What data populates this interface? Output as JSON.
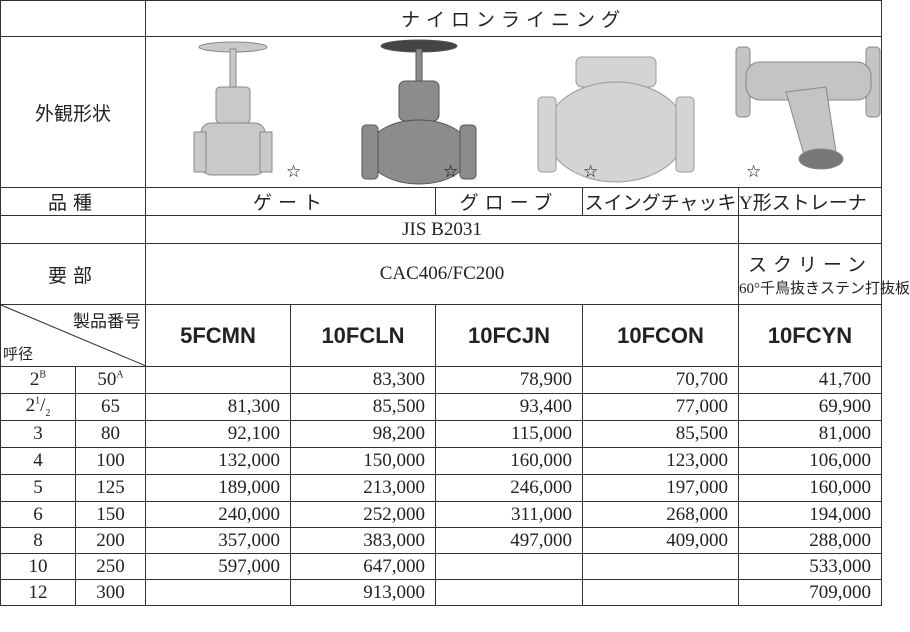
{
  "header": {
    "group": "ナイロンライニング"
  },
  "appearance": {
    "label": "外観形状",
    "marks": [
      "☆",
      "☆",
      "☆",
      "☆"
    ]
  },
  "type_row": {
    "label": "品種",
    "types": [
      "ゲート",
      "グローブ",
      "スイングチャッキ",
      "Y形ストレーナ"
    ]
  },
  "standard": {
    "text": "JIS B2031"
  },
  "material": {
    "label": "要部",
    "body": "CAC406/FC200",
    "screen": [
      "スクリーン",
      "60°千鳥抜きステン打抜板"
    ]
  },
  "table": {
    "corner_top": "製品番号",
    "corner_bottom": "呼径",
    "products": [
      "5FCMN",
      "10FCLN",
      "10FCJN",
      "10FCON",
      "10FCYN"
    ],
    "rows": [
      {
        "inch": "2",
        "inch_sup": "B",
        "mm": "50",
        "mm_sup": "A",
        "prices": [
          null,
          "83,300",
          "78,900",
          "70,700",
          "41,700"
        ]
      },
      {
        "inch": "2",
        "inch_frac": [
          "1",
          "2"
        ],
        "mm": "65",
        "prices": [
          "81,300",
          "85,500",
          "93,400",
          "77,000",
          "69,900"
        ]
      },
      {
        "inch": "3",
        "mm": "80",
        "prices": [
          "92,100",
          "98,200",
          "115,000",
          "85,500",
          "81,000"
        ]
      },
      {
        "inch": "4",
        "mm": "100",
        "prices": [
          "132,000",
          "150,000",
          "160,000",
          "123,000",
          "106,000"
        ]
      },
      {
        "inch": "5",
        "mm": "125",
        "prices": [
          "189,000",
          "213,000",
          "246,000",
          "197,000",
          "160,000"
        ]
      },
      {
        "inch": "6",
        "mm": "150",
        "prices": [
          "240,000",
          "252,000",
          "311,000",
          "268,000",
          "194,000"
        ]
      },
      {
        "inch": "8",
        "mm": "200",
        "prices": [
          "357,000",
          "383,000",
          "497,000",
          "409,000",
          "288,000"
        ]
      },
      {
        "inch": "10",
        "mm": "250",
        "prices": [
          "597,000",
          "647,000",
          null,
          null,
          "533,000"
        ]
      },
      {
        "inch": "12",
        "mm": "300",
        "prices": [
          null,
          "913,000",
          null,
          null,
          "709,000"
        ]
      }
    ]
  }
}
